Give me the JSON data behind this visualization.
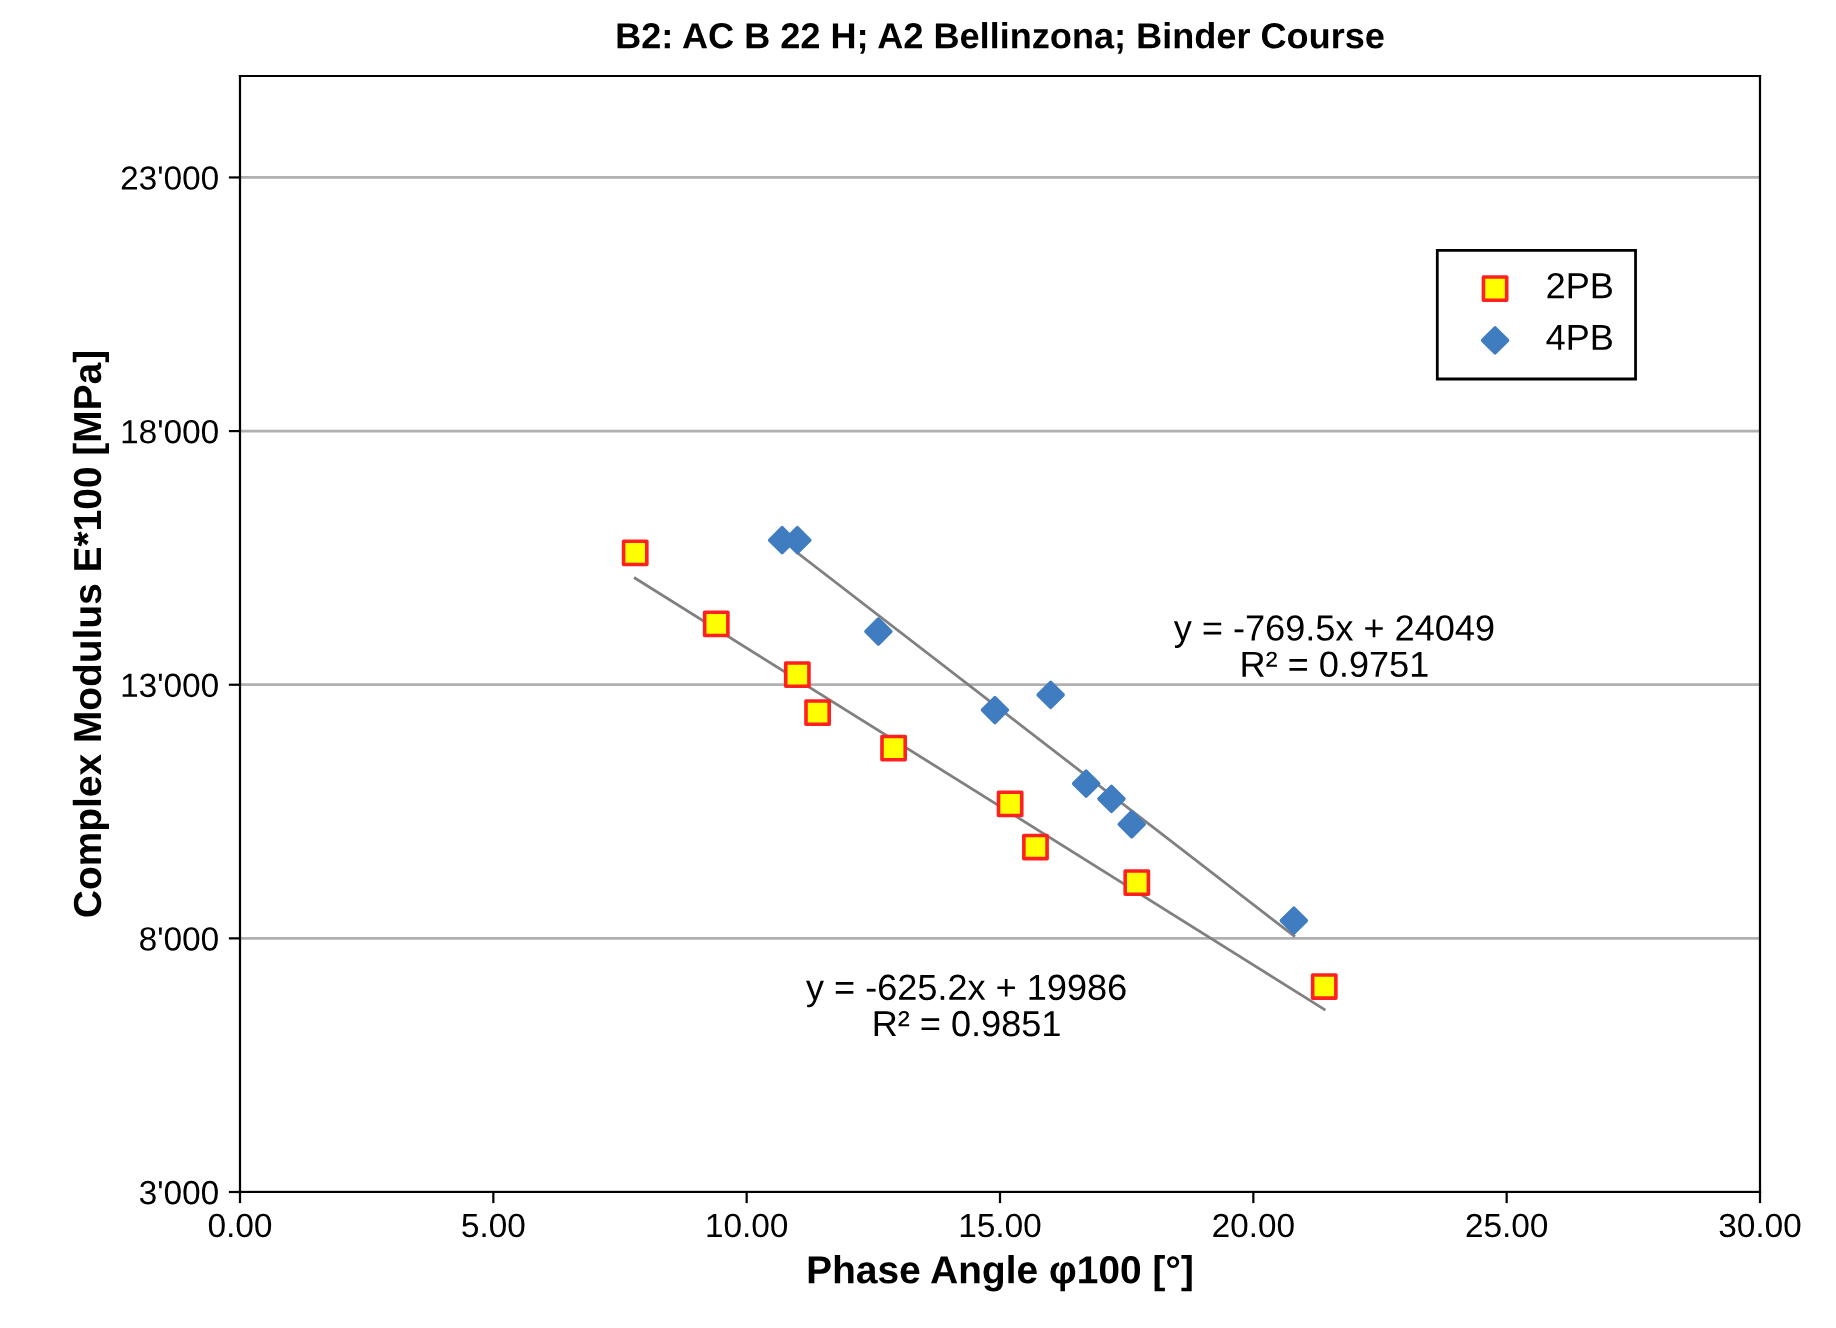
{
  "chart_data": {
    "type": "scatter",
    "title": "B2: AC B 22 H; A2 Bellinzona; Binder Course",
    "xlabel": "Phase Angle φ100 [°]",
    "ylabel": "Complex Modulus E*100 [MPa]",
    "xlim": [
      0,
      30
    ],
    "ylim": [
      3000,
      25000
    ],
    "xticks": [
      {
        "value": 0,
        "label": "0.00"
      },
      {
        "value": 5,
        "label": "5.00"
      },
      {
        "value": 10,
        "label": "10.00"
      },
      {
        "value": 15,
        "label": "15.00"
      },
      {
        "value": 20,
        "label": "20.00"
      },
      {
        "value": 25,
        "label": "25.00"
      },
      {
        "value": 30,
        "label": "30.00"
      }
    ],
    "yticks": [
      {
        "value": 3000,
        "label": "3'000"
      },
      {
        "value": 8000,
        "label": "8'000"
      },
      {
        "value": 13000,
        "label": "13'000"
      },
      {
        "value": 18000,
        "label": "18'000"
      },
      {
        "value": 23000,
        "label": "23'000"
      }
    ],
    "grid": "y",
    "legend": "top right",
    "series": [
      {
        "name": "2PB",
        "marker": "square",
        "color": "#ffff00",
        "x": [
          7.8,
          9.4,
          11.0,
          11.4,
          12.9,
          15.2,
          15.7,
          17.7,
          21.4
        ],
        "values": [
          15600,
          14200,
          13200,
          12450,
          11750,
          10650,
          9800,
          9100,
          7050
        ]
      },
      {
        "name": "4PB",
        "marker": "diamond",
        "color": "#3f7cc0",
        "x": [
          10.7,
          11.0,
          12.6,
          14.9,
          16.0,
          16.7,
          17.2,
          17.6,
          20.8
        ],
        "values": [
          15850,
          15850,
          14050,
          12500,
          12800,
          11050,
          10750,
          10250,
          8350
        ]
      },
      {
        "type": "line",
        "color": "#808080",
        "x": [
          7.8,
          21.4
        ],
        "values": [
          15100,
          6600
        ]
      },
      {
        "type": "line",
        "color": "#808080",
        "x": [
          11.0,
          20.8
        ],
        "values": [
          15600,
          8050
        ]
      }
    ],
    "annotations": [
      "y = -769.5x + 24049\nR² = 0.9751",
      "y = -625.2x + 19986\nR² = 0.9851"
    ]
  }
}
